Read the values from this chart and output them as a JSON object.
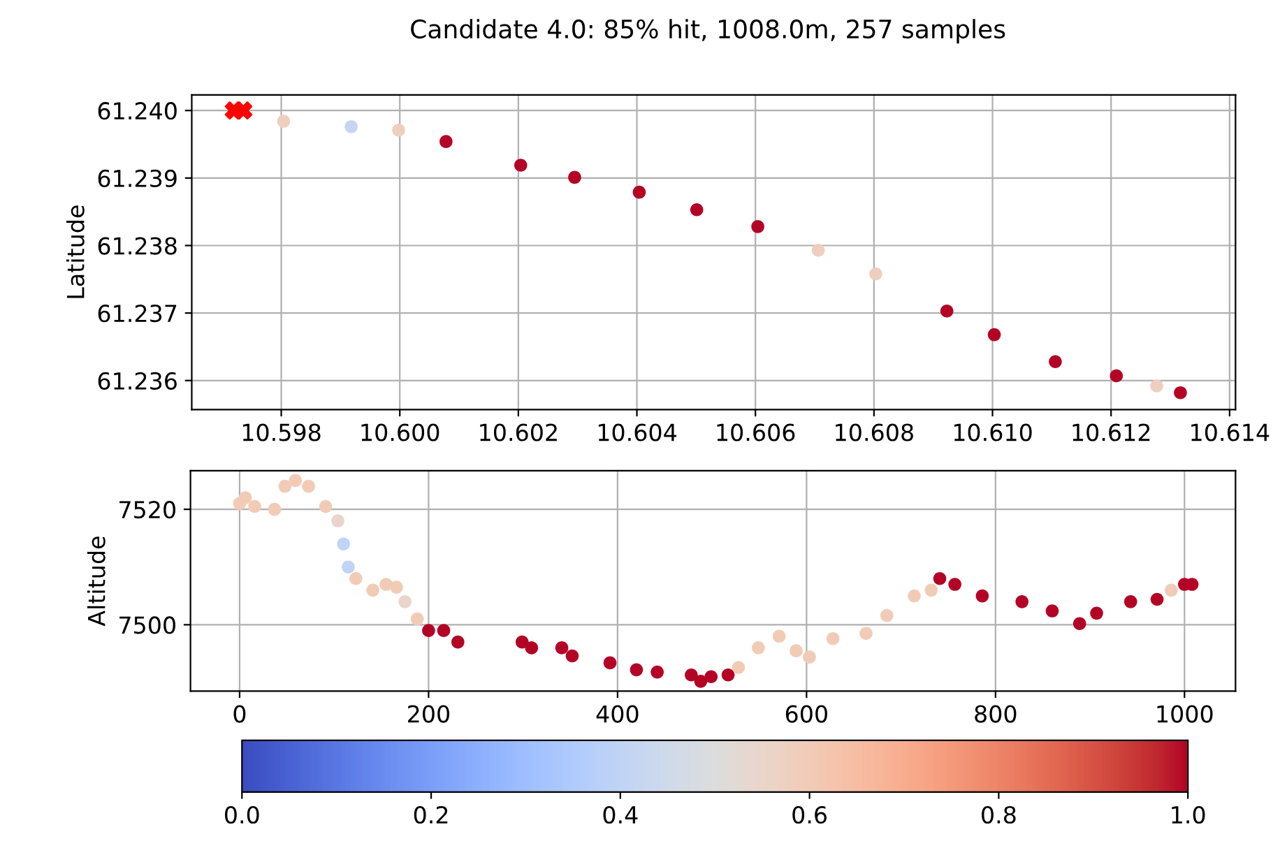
{
  "chart_data": [
    {
      "type": "scatter",
      "title": "Candidate 4.0: 85% hit, 1008.0m, 257 samples",
      "ylabel": "Latitude",
      "grid": true,
      "xlim": [
        10.59649,
        10.6141
      ],
      "ylim": [
        61.23557,
        61.24023
      ],
      "xticks": [
        {
          "value": 10.598,
          "label": "10.598"
        },
        {
          "value": 10.6,
          "label": "10.600"
        },
        {
          "value": 10.602,
          "label": "10.602"
        },
        {
          "value": 10.604,
          "label": "10.604"
        },
        {
          "value": 10.606,
          "label": "10.606"
        },
        {
          "value": 10.608,
          "label": "10.608"
        },
        {
          "value": 10.61,
          "label": "10.610"
        },
        {
          "value": 10.612,
          "label": "10.612"
        },
        {
          "value": 10.614,
          "label": "10.614"
        }
      ],
      "yticks": [
        {
          "value": 61.236,
          "label": "61.236"
        },
        {
          "value": 61.237,
          "label": "61.237"
        },
        {
          "value": 61.238,
          "label": "61.238"
        },
        {
          "value": 61.239,
          "label": "61.239"
        },
        {
          "value": 61.24,
          "label": "61.240"
        }
      ],
      "series": [
        {
          "x": [
            10.59804,
            10.59918,
            10.59998,
            10.60078,
            10.60204,
            10.60295,
            10.60404,
            10.60501,
            10.60604,
            10.60706,
            10.60803,
            10.60923,
            10.61003,
            10.61106,
            10.61209,
            10.61277,
            10.61317
          ],
          "values": [
            61.23984,
            61.23976,
            61.23971,
            61.23954,
            61.23919,
            61.23901,
            61.23879,
            61.23853,
            61.23828,
            61.23793,
            61.23758,
            61.23703,
            61.23668,
            61.23628,
            61.23607,
            61.23592,
            61.23582
          ],
          "colors": [
            "#eecfbf",
            "#c6d6f1",
            "#eecfbf",
            "#b40426",
            "#b40426",
            "#b40426",
            "#b40426",
            "#b40426",
            "#b40426",
            "#eecfbf",
            "#eecfbf",
            "#b40426",
            "#b40426",
            "#b40426",
            "#b40426",
            "#eecfbf",
            "#b40426"
          ],
          "marker": "circle"
        },
        {
          "type": "scatter",
          "x": [
            10.5972,
            10.59736
          ],
          "values": [
            61.24,
            61.24
          ],
          "color": "#ff0000",
          "marker": "cross"
        }
      ]
    },
    {
      "type": "scatter",
      "ylabel": "Altitude",
      "grid": true,
      "clim": [
        0,
        1
      ],
      "cticks": [
        {
          "value": 0,
          "label": "0.0"
        },
        {
          "value": 0.2,
          "label": "0.2"
        },
        {
          "value": 0.4,
          "label": "0.4"
        },
        {
          "value": 0.6,
          "label": "0.6"
        },
        {
          "value": 0.8,
          "label": "0.8"
        },
        {
          "value": 1,
          "label": "1.0"
        }
      ],
      "xlim": [
        -52,
        1054
      ],
      "ylim": [
        7488.5,
        7526.7
      ],
      "xticks": [
        0,
        200,
        400,
        600,
        800,
        1000
      ],
      "yticks": [
        7500,
        7520
      ],
      "series": [
        {
          "x": [
            0,
            6,
            16,
            37,
            48,
            59,
            73,
            91,
            104,
            110,
            115,
            123,
            141,
            155,
            166,
            175,
            188,
            200,
            216,
            231,
            299,
            309,
            341,
            352,
            392,
            420,
            442,
            478,
            488,
            499,
            517,
            528,
            549,
            571,
            589,
            603,
            628,
            663,
            685,
            714,
            732,
            741,
            757,
            786,
            828,
            860,
            889,
            907,
            943,
            971,
            986,
            1000,
            1008
          ],
          "values": [
            7521,
            7522,
            7520.5,
            7520,
            7524,
            7525,
            7524,
            7520.5,
            7518,
            7514,
            7510,
            7508,
            7506,
            7507,
            7506.5,
            7504,
            7501,
            7499,
            7499,
            7497,
            7497,
            7496,
            7496,
            7494.6,
            7493.4,
            7492.2,
            7491.8,
            7491.3,
            7490.2,
            7491,
            7491.3,
            7492.6,
            7496,
            7498,
            7495.5,
            7494.4,
            7497.6,
            7498.5,
            7501.6,
            7505,
            7506,
            7508,
            7507,
            7505,
            7504,
            7502.4,
            7500.2,
            7502,
            7504,
            7504.4,
            7506,
            7507,
            7507
          ],
          "cvalues": [
            0.6,
            0.6,
            0.6,
            0.6,
            0.6,
            0.6,
            0.6,
            0.6,
            0.55,
            0.4,
            0.4,
            0.6,
            0.6,
            0.6,
            0.6,
            0.55,
            0.6,
            1.0,
            1.0,
            1.0,
            1.0,
            1.0,
            1.0,
            1.0,
            1.0,
            1.0,
            1.0,
            1.0,
            1.0,
            1.0,
            1.0,
            0.6,
            0.6,
            0.6,
            0.6,
            0.6,
            0.6,
            0.6,
            0.6,
            0.6,
            0.6,
            1.0,
            1.0,
            1.0,
            1.0,
            1.0,
            1.0,
            1.0,
            1.0,
            1.0,
            0.6,
            1.0,
            1.0
          ],
          "marker": "circle"
        }
      ]
    }
  ]
}
